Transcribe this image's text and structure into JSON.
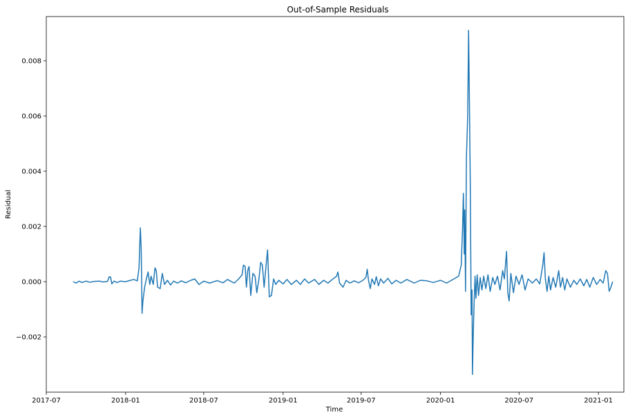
{
  "chart_data": {
    "type": "line",
    "title": "Out-of-Sample Residuals",
    "xlabel": "Time",
    "ylabel": "Residual",
    "xlim": [
      "2017-07-01",
      "2021-03-01"
    ],
    "ylim": [
      -0.004,
      0.0096
    ],
    "grid": false,
    "x_ticks": [
      {
        "value": "2017-07-01",
        "label": "2017-07"
      },
      {
        "value": "2018-01-01",
        "label": "2018-01"
      },
      {
        "value": "2018-07-01",
        "label": "2018-07"
      },
      {
        "value": "2019-01-01",
        "label": "2019-01"
      },
      {
        "value": "2019-07-01",
        "label": "2019-07"
      },
      {
        "value": "2020-01-01",
        "label": "2020-01"
      },
      {
        "value": "2020-07-01",
        "label": "2020-07"
      },
      {
        "value": "2021-01-01",
        "label": "2021-01"
      }
    ],
    "y_ticks": [
      {
        "value": -0.002,
        "label": "−0.002"
      },
      {
        "value": 0.0,
        "label": "0.000"
      },
      {
        "value": 0.002,
        "label": "0.002"
      },
      {
        "value": 0.004,
        "label": "0.004"
      },
      {
        "value": 0.006,
        "label": "0.006"
      },
      {
        "value": 0.008,
        "label": "0.008"
      }
    ],
    "series": [
      {
        "color": "#1f77b4",
        "points": [
          [
            "2017-09-01",
            0.0
          ],
          [
            "2017-09-08",
            -5e-05
          ],
          [
            "2017-09-15",
            2e-05
          ],
          [
            "2017-09-22",
            -3e-05
          ],
          [
            "2017-10-01",
            2e-05
          ],
          [
            "2017-10-10",
            -2e-05
          ],
          [
            "2017-10-20",
            1e-05
          ],
          [
            "2017-11-01",
            2e-05
          ],
          [
            "2017-11-10",
            -1e-05
          ],
          [
            "2017-11-20",
            1e-05
          ],
          [
            "2017-11-24",
            0.00018
          ],
          [
            "2017-11-27",
            0.00017
          ],
          [
            "2017-11-30",
            -8e-05
          ],
          [
            "2017-12-05",
            2e-05
          ],
          [
            "2017-12-12",
            -3e-05
          ],
          [
            "2017-12-20",
            2e-05
          ],
          [
            "2018-01-01",
            0.0
          ],
          [
            "2018-01-10",
            4e-05
          ],
          [
            "2018-01-20",
            8e-05
          ],
          [
            "2018-01-28",
            3e-05
          ],
          [
            "2018-02-01",
            0.0005
          ],
          [
            "2018-02-04",
            0.00195
          ],
          [
            "2018-02-06",
            0.0012
          ],
          [
            "2018-02-07",
            0.0002
          ],
          [
            "2018-02-08",
            -0.00115
          ],
          [
            "2018-02-10",
            -0.0007
          ],
          [
            "2018-02-14",
            -0.0002
          ],
          [
            "2018-02-18",
            0.0001
          ],
          [
            "2018-02-22",
            0.00035
          ],
          [
            "2018-02-26",
            -0.0001
          ],
          [
            "2018-03-01",
            0.0002
          ],
          [
            "2018-03-06",
            -0.0001
          ],
          [
            "2018-03-10",
            0.0005
          ],
          [
            "2018-03-13",
            0.0004
          ],
          [
            "2018-03-16",
            -0.0002
          ],
          [
            "2018-03-22",
            -0.00025
          ],
          [
            "2018-03-27",
            0.0003
          ],
          [
            "2018-04-01",
            -0.0001
          ],
          [
            "2018-04-08",
            5e-05
          ],
          [
            "2018-04-15",
            -0.00012
          ],
          [
            "2018-04-22",
            2e-05
          ],
          [
            "2018-05-01",
            -5e-05
          ],
          [
            "2018-05-10",
            3e-05
          ],
          [
            "2018-05-20",
            -4e-05
          ],
          [
            "2018-06-01",
            5e-05
          ],
          [
            "2018-06-10",
            0.0001
          ],
          [
            "2018-06-20",
            -0.0001
          ],
          [
            "2018-07-01",
            2e-05
          ],
          [
            "2018-07-15",
            -5e-05
          ],
          [
            "2018-08-01",
            4e-05
          ],
          [
            "2018-08-15",
            -4e-05
          ],
          [
            "2018-08-25",
            8e-05
          ],
          [
            "2018-09-01",
            2e-05
          ],
          [
            "2018-09-10",
            -5e-05
          ],
          [
            "2018-09-20",
            0.0001
          ],
          [
            "2018-09-28",
            0.00025
          ],
          [
            "2018-10-01",
            0.0006
          ],
          [
            "2018-10-05",
            0.00055
          ],
          [
            "2018-10-08",
            -0.0002
          ],
          [
            "2018-10-11",
            0.0004
          ],
          [
            "2018-10-14",
            0.00055
          ],
          [
            "2018-10-18",
            -0.0005
          ],
          [
            "2018-10-23",
            0.0003
          ],
          [
            "2018-10-28",
            0.0002
          ],
          [
            "2018-11-01",
            -0.0004
          ],
          [
            "2018-11-06",
            0.0001
          ],
          [
            "2018-11-10",
            0.0007
          ],
          [
            "2018-11-14",
            0.0006
          ],
          [
            "2018-11-18",
            -0.0002
          ],
          [
            "2018-11-22",
            0.0005
          ],
          [
            "2018-11-26",
            0.00115
          ],
          [
            "2018-11-30",
            -0.00055
          ],
          [
            "2018-12-05",
            -0.0005
          ],
          [
            "2018-12-10",
            0.0001
          ],
          [
            "2018-12-15",
            -0.0001
          ],
          [
            "2018-12-22",
            5e-05
          ],
          [
            "2019-01-01",
            -8e-05
          ],
          [
            "2019-01-10",
            8e-05
          ],
          [
            "2019-01-20",
            -0.0001
          ],
          [
            "2019-02-01",
            5e-05
          ],
          [
            "2019-02-10",
            -0.0001
          ],
          [
            "2019-02-20",
            0.0001
          ],
          [
            "2019-03-01",
            -5e-05
          ],
          [
            "2019-03-15",
            8e-05
          ],
          [
            "2019-03-25",
            -0.0001
          ],
          [
            "2019-04-05",
            5e-05
          ],
          [
            "2019-04-15",
            -5e-05
          ],
          [
            "2019-04-25",
            8e-05
          ],
          [
            "2019-05-05",
            0.0002
          ],
          [
            "2019-05-08",
            0.00035
          ],
          [
            "2019-05-12",
            -5e-05
          ],
          [
            "2019-05-20",
            -0.0002
          ],
          [
            "2019-05-27",
            5e-05
          ],
          [
            "2019-06-05",
            -5e-05
          ],
          [
            "2019-06-15",
            3e-05
          ],
          [
            "2019-06-25",
            -4e-05
          ],
          [
            "2019-07-05",
            5e-05
          ],
          [
            "2019-07-12",
            0.00015
          ],
          [
            "2019-07-15",
            0.00045
          ],
          [
            "2019-07-18",
            5e-05
          ],
          [
            "2019-07-22",
            -0.00025
          ],
          [
            "2019-07-26",
            0.0001
          ],
          [
            "2019-08-01",
            -0.0001
          ],
          [
            "2019-08-05",
            0.00018
          ],
          [
            "2019-08-10",
            -0.00015
          ],
          [
            "2019-08-15",
            0.0001
          ],
          [
            "2019-08-22",
            -5e-05
          ],
          [
            "2019-09-01",
            0.00012
          ],
          [
            "2019-09-10",
            -8e-05
          ],
          [
            "2019-09-20",
            5e-05
          ],
          [
            "2019-10-01",
            -5e-05
          ],
          [
            "2019-10-15",
            8e-05
          ],
          [
            "2019-11-01",
            -5e-05
          ],
          [
            "2019-11-15",
            5e-05
          ],
          [
            "2019-12-01",
            3e-05
          ],
          [
            "2019-12-15",
            -3e-05
          ],
          [
            "2020-01-01",
            5e-05
          ],
          [
            "2020-01-15",
            -5e-05
          ],
          [
            "2020-02-01",
            0.0001
          ],
          [
            "2020-02-12",
            0.0002
          ],
          [
            "2020-02-18",
            0.0006
          ],
          [
            "2020-02-21",
            0.0019
          ],
          [
            "2020-02-23",
            0.0032
          ],
          [
            "2020-02-25",
            0.001
          ],
          [
            "2020-02-26",
            0.0026
          ],
          [
            "2020-02-28",
            -0.00035
          ],
          [
            "2020-03-01",
            0.0045
          ],
          [
            "2020-03-04",
            0.006
          ],
          [
            "2020-03-06",
            0.0091
          ],
          [
            "2020-03-08",
            0.0065
          ],
          [
            "2020-03-10",
            0.0035
          ],
          [
            "2020-03-12",
            -0.0012
          ],
          [
            "2020-03-14",
            -0.0003
          ],
          [
            "2020-03-15",
            -0.00336
          ],
          [
            "2020-03-17",
            -0.0018
          ],
          [
            "2020-03-19",
            -0.0007
          ],
          [
            "2020-03-21",
            0.0002
          ],
          [
            "2020-03-23",
            -0.0006
          ],
          [
            "2020-03-26",
            0.00025
          ],
          [
            "2020-03-29",
            -0.0005
          ],
          [
            "2020-04-02",
            0.00015
          ],
          [
            "2020-04-06",
            -0.0003
          ],
          [
            "2020-04-10",
            0.0002
          ],
          [
            "2020-04-15",
            -0.00025
          ],
          [
            "2020-04-20",
            0.00025
          ],
          [
            "2020-04-25",
            -0.00035
          ],
          [
            "2020-05-01",
            0.00015
          ],
          [
            "2020-05-06",
            -0.0001
          ],
          [
            "2020-05-12",
            0.0002
          ],
          [
            "2020-05-18",
            -0.0003
          ],
          [
            "2020-05-24",
            0.0004
          ],
          [
            "2020-05-28",
            0.0001
          ],
          [
            "2020-06-02",
            0.0011
          ],
          [
            "2020-06-05",
            -0.0004
          ],
          [
            "2020-06-08",
            -0.0007
          ],
          [
            "2020-06-12",
            0.0003
          ],
          [
            "2020-06-18",
            -0.0004
          ],
          [
            "2020-06-24",
            0.0002
          ],
          [
            "2020-07-01",
            -0.0001
          ],
          [
            "2020-07-08",
            0.00025
          ],
          [
            "2020-07-15",
            -0.0003
          ],
          [
            "2020-07-22",
            0.0001
          ],
          [
            "2020-08-01",
            -5e-05
          ],
          [
            "2020-08-10",
            0.0001
          ],
          [
            "2020-08-18",
            -8e-05
          ],
          [
            "2020-08-25",
            0.0006
          ],
          [
            "2020-08-28",
            0.00105
          ],
          [
            "2020-08-31",
            0.0001
          ],
          [
            "2020-09-04",
            -0.00035
          ],
          [
            "2020-09-08",
            0.0002
          ],
          [
            "2020-09-12",
            -0.0003
          ],
          [
            "2020-09-18",
            0.00015
          ],
          [
            "2020-09-24",
            -0.0002
          ],
          [
            "2020-10-01",
            0.0004
          ],
          [
            "2020-10-05",
            -0.0002
          ],
          [
            "2020-10-10",
            0.00015
          ],
          [
            "2020-10-15",
            -0.0003
          ],
          [
            "2020-10-20",
            0.0001
          ],
          [
            "2020-10-28",
            -0.0002
          ],
          [
            "2020-11-05",
            5e-05
          ],
          [
            "2020-11-12",
            -0.0001
          ],
          [
            "2020-11-20",
            0.0001
          ],
          [
            "2020-11-28",
            -0.00015
          ],
          [
            "2020-12-05",
            8e-05
          ],
          [
            "2020-12-12",
            -0.0002
          ],
          [
            "2020-12-20",
            0.00015
          ],
          [
            "2020-12-28",
            -0.0001
          ],
          [
            "2021-01-05",
            8e-05
          ],
          [
            "2021-01-12",
            -5e-05
          ],
          [
            "2021-01-18",
            0.0004
          ],
          [
            "2021-01-22",
            0.0003
          ],
          [
            "2021-01-26",
            -0.00035
          ],
          [
            "2021-01-30",
            -0.0002
          ],
          [
            "2021-02-03",
            0.0
          ]
        ]
      }
    ]
  }
}
